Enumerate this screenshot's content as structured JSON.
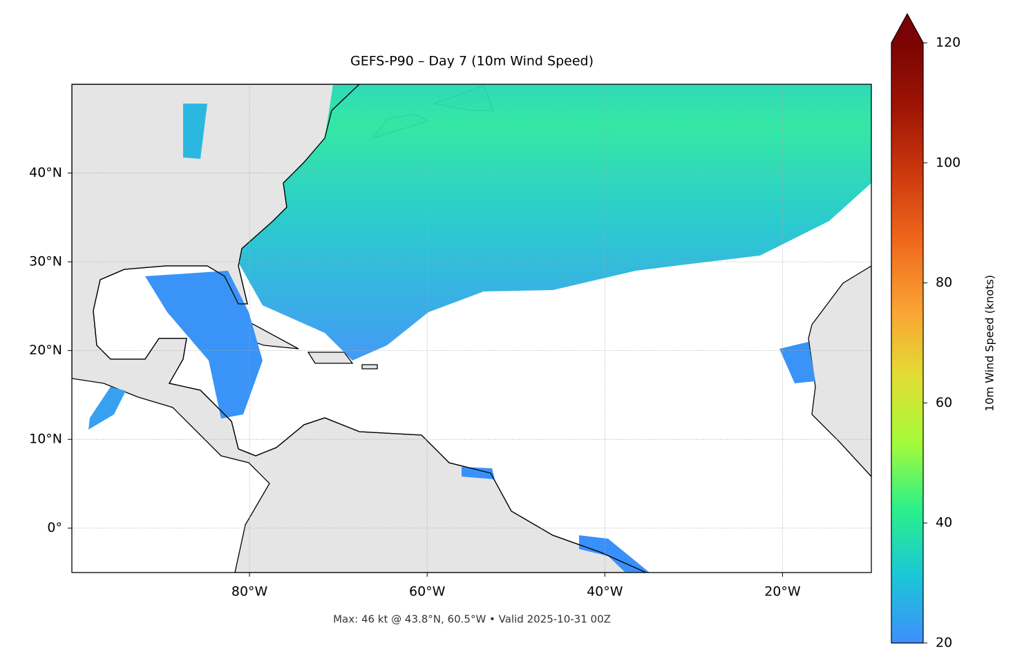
{
  "chart_data": {
    "type": "map",
    "title": "GEFS-P90 – Day 7 (10m Wind Speed)",
    "footer": "Max: 46 kt @ 43.8°N, 60.5°W • Valid 2025-10-31 00Z",
    "xlim": [
      -100,
      -10
    ],
    "ylim": [
      -5,
      50
    ],
    "xticks": [
      {
        "value": -80,
        "label": "80°W"
      },
      {
        "value": -60,
        "label": "60°W"
      },
      {
        "value": -40,
        "label": "40°W"
      },
      {
        "value": -20,
        "label": "20°W"
      }
    ],
    "yticks": [
      {
        "value": 0,
        "label": "0°"
      },
      {
        "value": 10,
        "label": "10°N"
      },
      {
        "value": 20,
        "label": "20°N"
      },
      {
        "value": 30,
        "label": "30°N"
      },
      {
        "value": 40,
        "label": "40°N"
      }
    ],
    "grid": true,
    "colorbar": {
      "label": "10m Wind Speed (knots)",
      "lim": [
        20,
        120
      ],
      "ticks": [
        20,
        40,
        60,
        80,
        100,
        120
      ],
      "colors": [
        "#3f8ffc",
        "#1bc6d8",
        "#2af08a",
        "#a4fb3a",
        "#e2dd34",
        "#fba234",
        "#f06a1c",
        "#cf3a0e",
        "#a01505",
        "#7a0403"
      ]
    }
  }
}
